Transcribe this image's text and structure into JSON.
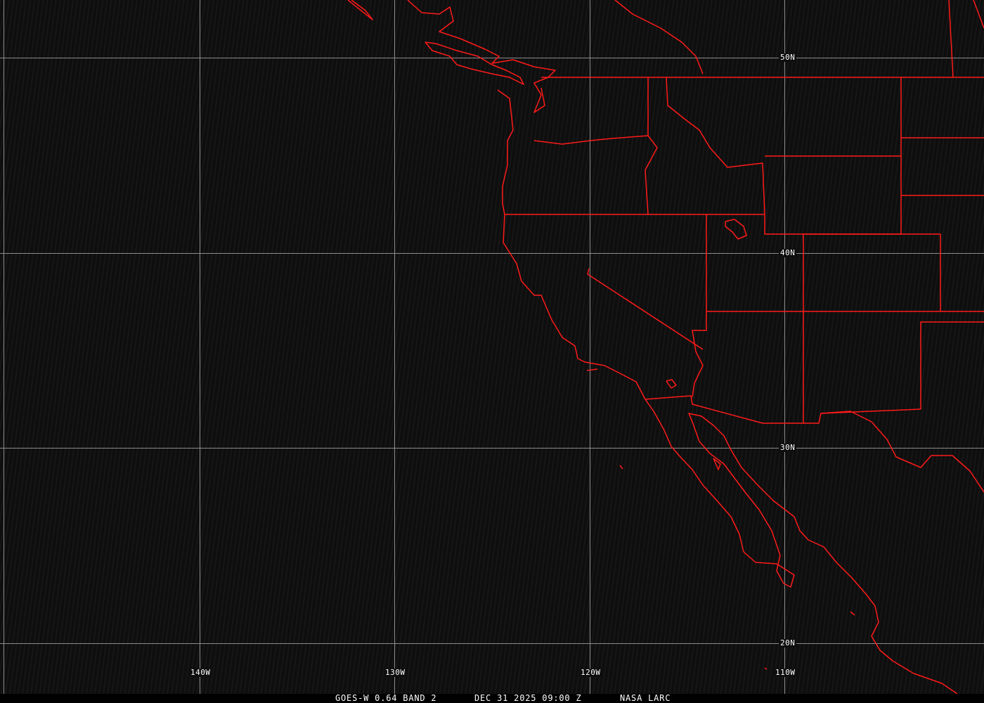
{
  "map": {
    "grid_color": "#8c8c8c",
    "boundary_color": "#ff1a1a",
    "background_color": "#0e0e0e",
    "lat_labels": [
      "50N",
      "40N",
      "30N",
      "20N"
    ],
    "lon_labels": [
      "140W",
      "130W",
      "120W",
      "110W"
    ]
  },
  "caption": {
    "product": "GOES-W 0.64 BAND 2",
    "datetime": "DEC 31 2025 09:00 Z",
    "source": "NASA LARC"
  }
}
